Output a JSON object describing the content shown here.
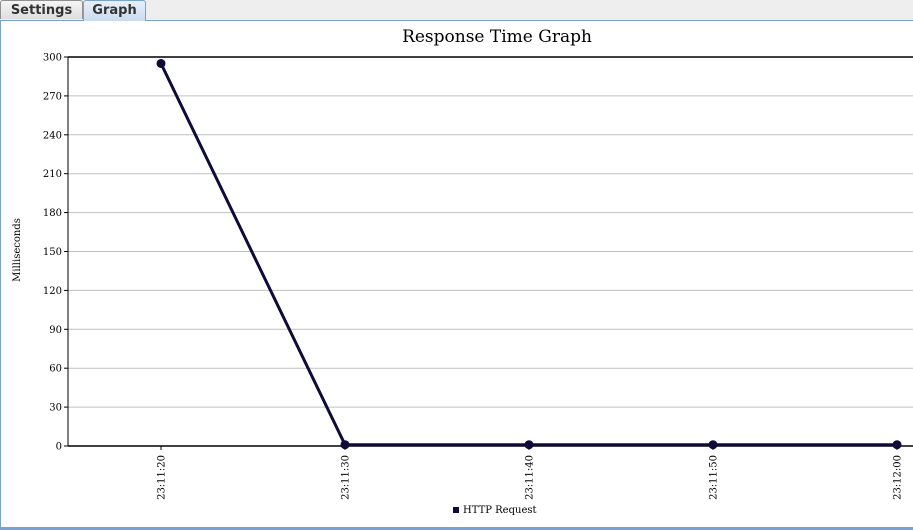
{
  "tabs": [
    {
      "label": "Settings",
      "active": false
    },
    {
      "label": "Graph",
      "active": true
    }
  ],
  "chart_data": {
    "type": "line",
    "title": "Response Time Graph",
    "xlabel": "",
    "ylabel": "Milliseconds",
    "x": [
      "23:11:20",
      "23:11:30",
      "23:11:40",
      "23:11:50",
      "23:12:00"
    ],
    "ylim": [
      0,
      300
    ],
    "yticks": [
      0,
      30,
      60,
      90,
      120,
      150,
      180,
      210,
      240,
      270,
      300
    ],
    "grid": true,
    "legend": "bottom",
    "series": [
      {
        "name": "HTTP Request",
        "color": "#0e0a3a",
        "values": [
          295,
          1,
          1,
          1,
          1
        ]
      }
    ]
  }
}
